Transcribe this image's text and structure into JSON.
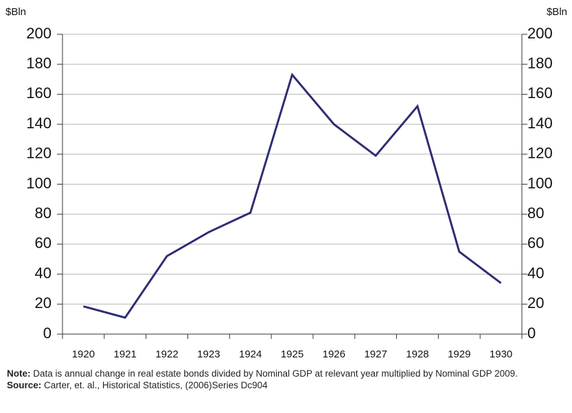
{
  "chart_data": {
    "type": "line",
    "y_label": "$Bln",
    "y2_label": "$Bln",
    "categories": [
      "1920",
      "1921",
      "1922",
      "1923",
      "1924",
      "1925",
      "1926",
      "1927",
      "1928",
      "1929",
      "1930"
    ],
    "series": [
      {
        "color": "#2e2d73",
        "values": [
          18.5,
          11,
          52,
          68,
          81,
          173,
          140,
          119,
          152,
          55,
          34
        ]
      }
    ],
    "ylim": [
      0,
      200
    ],
    "yticks": [
      0,
      20,
      40,
      60,
      80,
      100,
      120,
      140,
      160,
      180,
      200
    ],
    "y2lim": [
      0,
      200
    ],
    "y2ticks": [
      0,
      20,
      40,
      60,
      80,
      100,
      120,
      140,
      160,
      180,
      200
    ],
    "grid": true,
    "notes": [
      {
        "label": "Note:",
        "text": "Data is annual change in real estate bonds divided by Nominal GDP at relevant year multiplied by Nominal GDP 2009."
      },
      {
        "label": "Source:",
        "text": "Carter, et. al., Historical Statistics, (2006)Series Dc904"
      }
    ]
  }
}
